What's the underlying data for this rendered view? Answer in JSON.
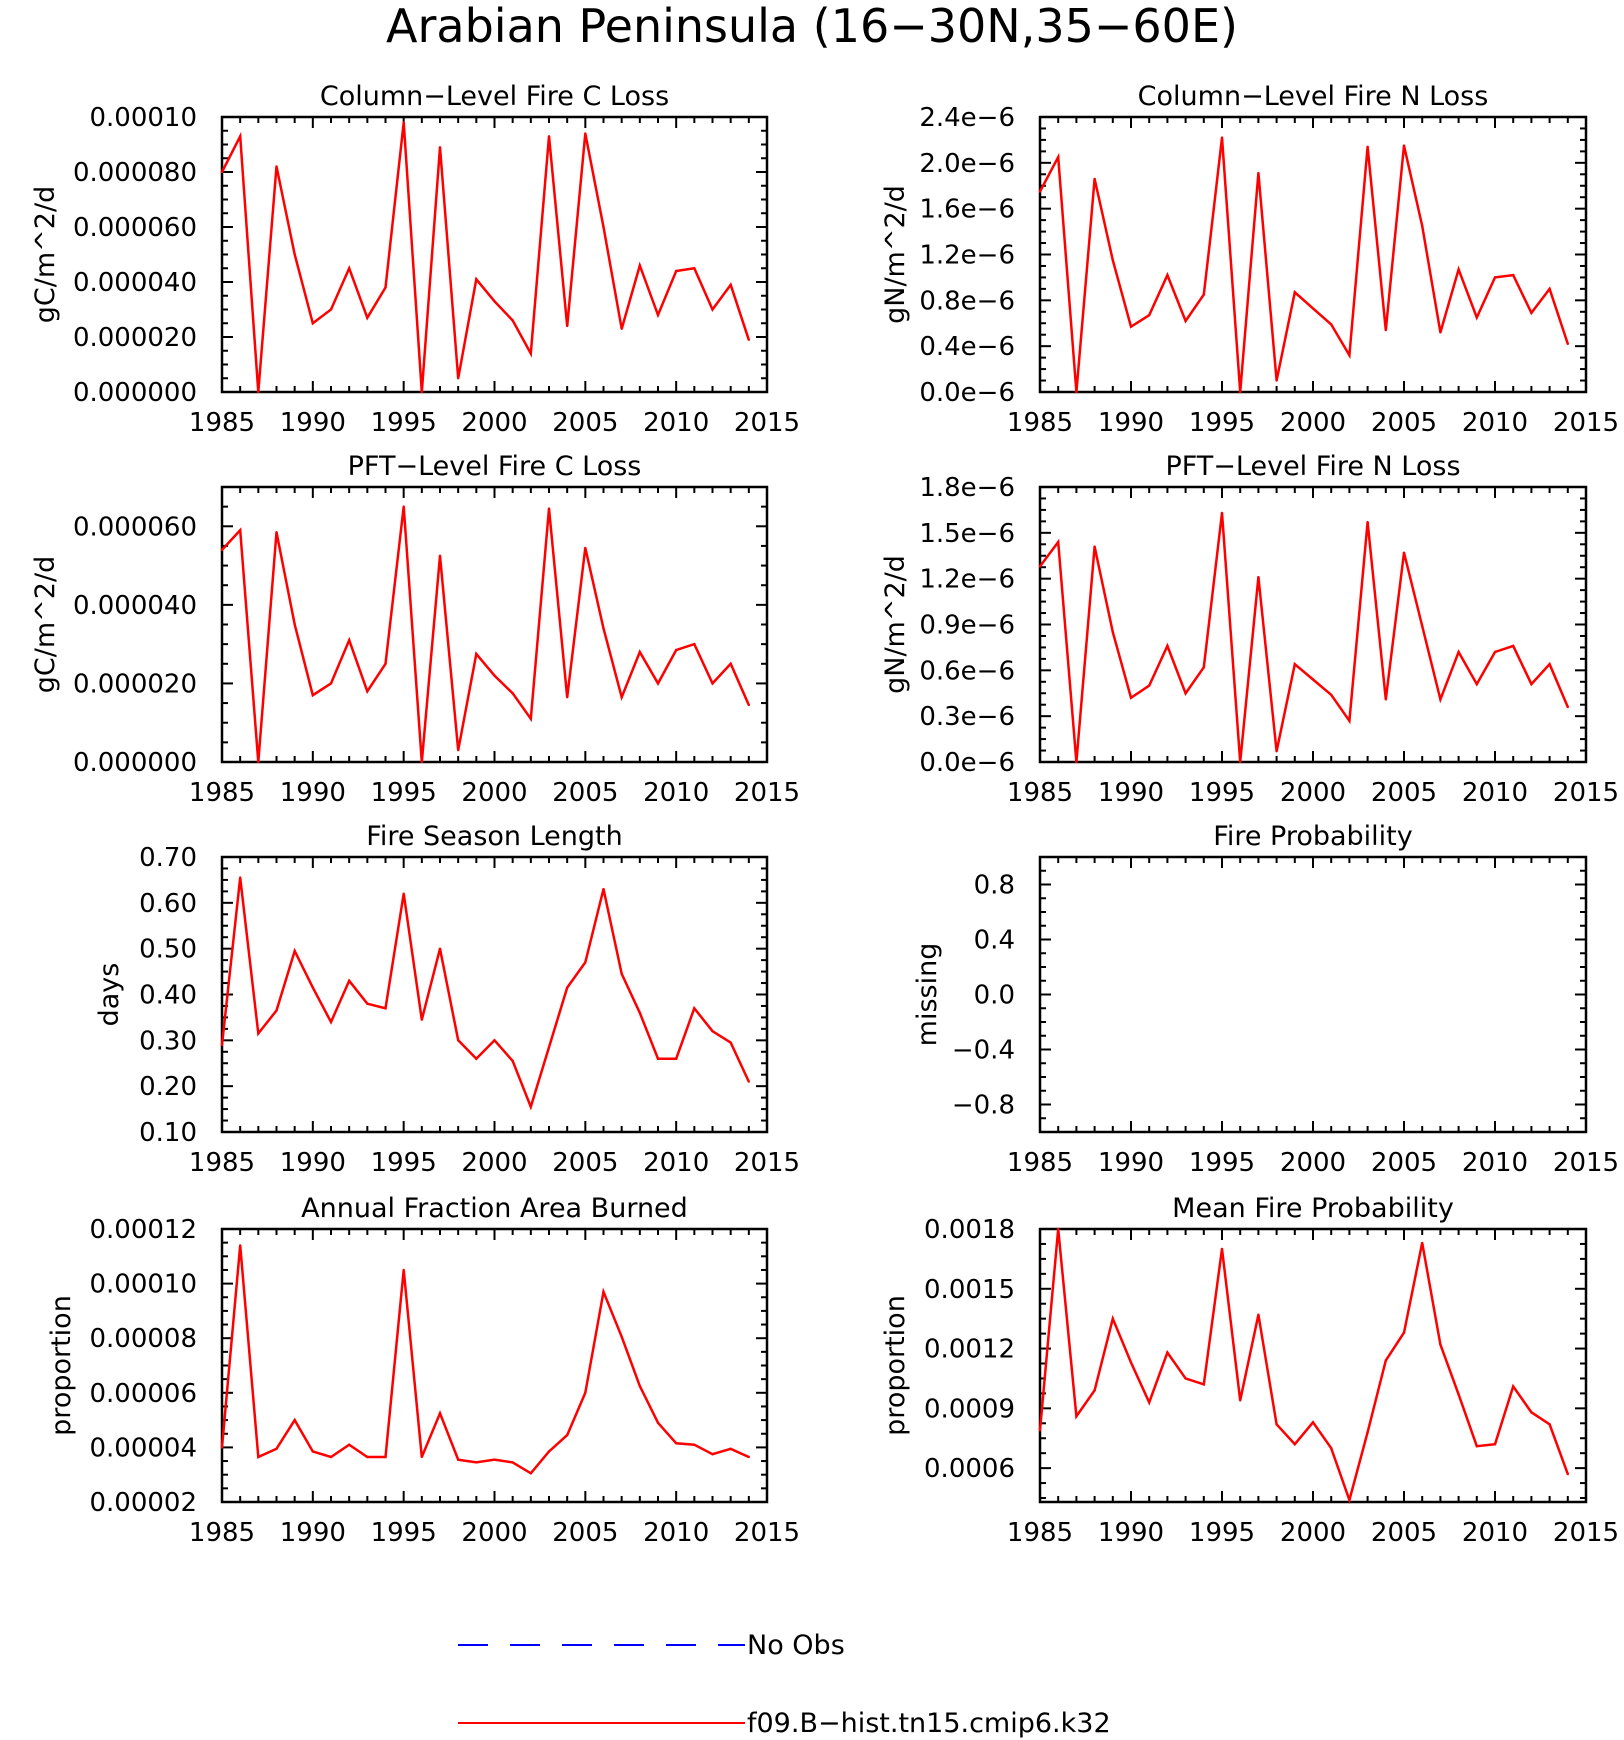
{
  "figure": {
    "title": "Arabian Peninsula (16−30N,35−60E)",
    "line_color": "#ff0000",
    "obs_color": "#0000ff",
    "legend": [
      {
        "label": "No Obs",
        "style": "dashed",
        "color": "#0000ff"
      },
      {
        "label": "f09.B−hist.tn15.cmip6.k32",
        "style": "solid",
        "color": "#ff0000"
      }
    ]
  },
  "chart_data": [
    {
      "type": "line",
      "title": "Column−Level Fire C Loss",
      "ylabel": "gC/m^2/d",
      "xlim": [
        1985,
        2015
      ],
      "xticks": [
        1985,
        1990,
        1995,
        2000,
        2005,
        2010,
        2015
      ],
      "xticklabels": [
        "1985",
        "1990",
        "1995",
        "2000",
        "2005",
        "2010",
        "2015"
      ],
      "ylim": [
        0,
        0.0001
      ],
      "yticks": [
        0,
        2e-05,
        4e-05,
        6e-05,
        8e-05,
        0.0001
      ],
      "yticklabels": [
        "0.000000",
        "0.000020",
        "0.000040",
        "0.000060",
        "0.000080",
        "0.00010"
      ],
      "x": [
        1985,
        1986,
        1987,
        1988,
        1989,
        1990,
        1991,
        1992,
        1993,
        1994,
        1995,
        1996,
        1997,
        1998,
        1999,
        2000,
        2001,
        2002,
        2003,
        2004,
        2005,
        2006,
        2007,
        2008,
        2009,
        2010,
        2011,
        2012,
        2013,
        2014
      ],
      "series": [
        {
          "values": [
            8e-05,
            9.3e-05,
            0.0,
            8.2e-05,
            5e-05,
            2.5e-05,
            3e-05,
            4.5e-05,
            2.7e-05,
            3.8e-05,
            9.8e-05,
            0.0,
            8.9e-05,
            5e-06,
            4.1e-05,
            3.3e-05,
            2.6e-05,
            1.4e-05,
            9.3e-05,
            2.4e-05,
            9.4e-05,
            6e-05,
            2.3e-05,
            4.6e-05,
            2.8e-05,
            4.4e-05,
            4.5e-05,
            3e-05,
            3.9e-05,
            1.9e-05
          ]
        }
      ]
    },
    {
      "type": "line",
      "title": "Column−Level Fire N Loss",
      "ylabel": "gN/m^2/d",
      "xlim": [
        1985,
        2015
      ],
      "xticks": [
        1985,
        1990,
        1995,
        2000,
        2005,
        2010,
        2015
      ],
      "xticklabels": [
        "1985",
        "1990",
        "1995",
        "2000",
        "2005",
        "2010",
        "2015"
      ],
      "ylim": [
        0,
        2.4e-06
      ],
      "yticks": [
        0,
        4e-07,
        8e-07,
        1.2e-06,
        1.6e-06,
        2e-06,
        2.4e-06
      ],
      "yticklabels": [
        "0.0e−6",
        "0.4e−6",
        "0.8e−6",
        "1.2e−6",
        "1.6e−6",
        "2.0e−6",
        "2.4e−6"
      ],
      "x": [
        1985,
        1986,
        1987,
        1988,
        1989,
        1990,
        1991,
        1992,
        1993,
        1994,
        1995,
        1996,
        1997,
        1998,
        1999,
        2000,
        2001,
        2002,
        2003,
        2004,
        2005,
        2006,
        2007,
        2008,
        2009,
        2010,
        2011,
        2012,
        2013,
        2014
      ],
      "series": [
        {
          "values": [
            1.75e-06,
            2.05e-06,
            0.0,
            1.86e-06,
            1.15e-06,
            5.7e-07,
            6.7e-07,
            1.02e-06,
            6.2e-07,
            8.5e-07,
            2.22e-06,
            0.0,
            1.91e-06,
            1e-07,
            8.7e-07,
            7.3e-07,
            5.9e-07,
            3.2e-07,
            2.14e-06,
            5.4e-07,
            2.15e-06,
            1.45e-06,
            5.2e-07,
            1.07e-06,
            6.5e-07,
            1e-06,
            1.02e-06,
            6.9e-07,
            9e-07,
            4.2e-07
          ]
        }
      ]
    },
    {
      "type": "line",
      "title": "PFT−Level Fire C Loss",
      "ylabel": "gC/m^2/d",
      "xlim": [
        1985,
        2015
      ],
      "xticks": [
        1985,
        1990,
        1995,
        2000,
        2005,
        2010,
        2015
      ],
      "xticklabels": [
        "1985",
        "1990",
        "1995",
        "2000",
        "2005",
        "2010",
        "2015"
      ],
      "ylim": [
        0,
        7e-05
      ],
      "yticks": [
        0,
        2e-05,
        4e-05,
        6e-05
      ],
      "yticklabels": [
        "0.000000",
        "0.000020",
        "0.000040",
        "0.000060"
      ],
      "x": [
        1985,
        1986,
        1987,
        1988,
        1989,
        1990,
        1991,
        1992,
        1993,
        1994,
        1995,
        1996,
        1997,
        1998,
        1999,
        2000,
        2001,
        2002,
        2003,
        2004,
        2005,
        2006,
        2007,
        2008,
        2009,
        2010,
        2011,
        2012,
        2013,
        2014
      ],
      "series": [
        {
          "values": [
            5.4e-05,
            5.9e-05,
            0.0,
            5.85e-05,
            3.5e-05,
            1.7e-05,
            2e-05,
            3.1e-05,
            1.8e-05,
            2.5e-05,
            6.5e-05,
            0.0,
            5.25e-05,
            3e-06,
            2.75e-05,
            2.2e-05,
            1.75e-05,
            1.1e-05,
            6.45e-05,
            1.65e-05,
            5.45e-05,
            3.4e-05,
            1.65e-05,
            2.8e-05,
            2e-05,
            2.85e-05,
            3e-05,
            2e-05,
            2.5e-05,
            1.45e-05
          ]
        }
      ]
    },
    {
      "type": "line",
      "title": "PFT−Level Fire N Loss",
      "ylabel": "gN/m^2/d",
      "xlim": [
        1985,
        2015
      ],
      "xticks": [
        1985,
        1990,
        1995,
        2000,
        2005,
        2010,
        2015
      ],
      "xticklabels": [
        "1985",
        "1990",
        "1995",
        "2000",
        "2005",
        "2010",
        "2015"
      ],
      "ylim": [
        0,
        1.8e-06
      ],
      "yticks": [
        0,
        3e-07,
        6e-07,
        9e-07,
        1.2e-06,
        1.5e-06,
        1.8e-06
      ],
      "yticklabels": [
        "0.0e−6",
        "0.3e−6",
        "0.6e−6",
        "0.9e−6",
        "1.2e−6",
        "1.5e−6",
        "1.8e−6"
      ],
      "x": [
        1985,
        1986,
        1987,
        1988,
        1989,
        1990,
        1991,
        1992,
        1993,
        1994,
        1995,
        1996,
        1997,
        1998,
        1999,
        2000,
        2001,
        2002,
        2003,
        2004,
        2005,
        2006,
        2007,
        2008,
        2009,
        2010,
        2011,
        2012,
        2013,
        2014
      ],
      "series": [
        {
          "values": [
            1.28e-06,
            1.44e-06,
            0.0,
            1.41e-06,
            8.5e-07,
            4.2e-07,
            5e-07,
            7.6e-07,
            4.5e-07,
            6.2e-07,
            1.63e-06,
            0.0,
            1.21e-06,
            7e-08,
            6.4e-07,
            5.4e-07,
            4.4e-07,
            2.7e-07,
            1.57e-06,
            4.1e-07,
            1.37e-06,
            8.9e-07,
            4.1e-07,
            7.2e-07,
            5.1e-07,
            7.2e-07,
            7.6e-07,
            5.1e-07,
            6.4e-07,
            3.6e-07
          ]
        }
      ]
    },
    {
      "type": "line",
      "title": "Fire Season Length",
      "ylabel": "days",
      "xlim": [
        1985,
        2015
      ],
      "xticks": [
        1985,
        1990,
        1995,
        2000,
        2005,
        2010,
        2015
      ],
      "xticklabels": [
        "1985",
        "1990",
        "1995",
        "2000",
        "2005",
        "2010",
        "2015"
      ],
      "ylim": [
        0.1,
        0.7
      ],
      "yticks": [
        0.1,
        0.2,
        0.3,
        0.4,
        0.5,
        0.6,
        0.7
      ],
      "yticklabels": [
        "0.10",
        "0.20",
        "0.30",
        "0.40",
        "0.50",
        "0.60",
        "0.70"
      ],
      "x": [
        1985,
        1986,
        1987,
        1988,
        1989,
        1990,
        1991,
        1992,
        1993,
        1994,
        1995,
        1996,
        1997,
        1998,
        1999,
        2000,
        2001,
        2002,
        2003,
        2004,
        2005,
        2006,
        2007,
        2008,
        2009,
        2010,
        2011,
        2012,
        2013,
        2014
      ],
      "series": [
        {
          "values": [
            0.29,
            0.655,
            0.315,
            0.365,
            0.495,
            0.415,
            0.34,
            0.43,
            0.38,
            0.37,
            0.62,
            0.345,
            0.5,
            0.3,
            0.26,
            0.3,
            0.255,
            0.155,
            0.285,
            0.415,
            0.47,
            0.63,
            0.445,
            0.36,
            0.26,
            0.26,
            0.37,
            0.32,
            0.295,
            0.21
          ]
        }
      ]
    },
    {
      "type": "line",
      "title": "Fire Probability",
      "ylabel": "missing",
      "xlim": [
        1985,
        2015
      ],
      "xticks": [
        1985,
        1990,
        1995,
        2000,
        2005,
        2010,
        2015
      ],
      "xticklabels": [
        "1985",
        "1990",
        "1995",
        "2000",
        "2005",
        "2010",
        "2015"
      ],
      "ylim": [
        -1.0,
        1.0
      ],
      "yticks": [
        -0.8,
        -0.4,
        0.0,
        0.4,
        0.8
      ],
      "yticklabels": [
        "−0.8",
        "−0.4",
        "0.0",
        "0.4",
        "0.8"
      ],
      "x": [],
      "series": []
    },
    {
      "type": "line",
      "title": "Annual Fraction Area Burned",
      "ylabel": "proportion",
      "xlim": [
        1985,
        2015
      ],
      "xticks": [
        1985,
        1990,
        1995,
        2000,
        2005,
        2010,
        2015
      ],
      "xticklabels": [
        "1985",
        "1990",
        "1995",
        "2000",
        "2005",
        "2010",
        "2015"
      ],
      "ylim": [
        2e-05,
        0.00012
      ],
      "yticks": [
        2e-05,
        4e-05,
        6e-05,
        8e-05,
        0.0001,
        0.00012
      ],
      "yticklabels": [
        "0.00002",
        "0.00004",
        "0.00006",
        "0.00008",
        "0.00010",
        "0.00012"
      ],
      "x": [
        1985,
        1986,
        1987,
        1988,
        1989,
        1990,
        1991,
        1992,
        1993,
        1994,
        1995,
        1996,
        1997,
        1998,
        1999,
        2000,
        2001,
        2002,
        2003,
        2004,
        2005,
        2006,
        2007,
        2008,
        2009,
        2010,
        2011,
        2012,
        2013,
        2014
      ],
      "series": [
        {
          "values": [
            4e-05,
            0.000114,
            3.65e-05,
            3.95e-05,
            5e-05,
            3.85e-05,
            3.65e-05,
            4.1e-05,
            3.65e-05,
            3.65e-05,
            0.000105,
            3.65e-05,
            5.25e-05,
            3.55e-05,
            3.45e-05,
            3.55e-05,
            3.45e-05,
            3.05e-05,
            3.85e-05,
            4.45e-05,
            6e-05,
            9.7e-05,
            8.05e-05,
            6.25e-05,
            4.9e-05,
            4.15e-05,
            4.1e-05,
            3.75e-05,
            3.95e-05,
            3.65e-05
          ]
        }
      ]
    },
    {
      "type": "line",
      "title": "Mean Fire Probability",
      "ylabel": "proportion",
      "xlim": [
        1985,
        2015
      ],
      "xticks": [
        1985,
        1990,
        1995,
        2000,
        2005,
        2010,
        2015
      ],
      "xticklabels": [
        "1985",
        "1990",
        "1995",
        "2000",
        "2005",
        "2010",
        "2015"
      ],
      "ylim": [
        0.00043,
        0.0018
      ],
      "yticks": [
        0.0006,
        0.0009,
        0.0012,
        0.0015,
        0.0018
      ],
      "yticklabels": [
        "0.0006",
        "0.0009",
        "0.0012",
        "0.0015",
        "0.0018"
      ],
      "x": [
        1985,
        1986,
        1987,
        1988,
        1989,
        1990,
        1991,
        1992,
        1993,
        1994,
        1995,
        1996,
        1997,
        1998,
        1999,
        2000,
        2001,
        2002,
        2003,
        2004,
        2005,
        2006,
        2007,
        2008,
        2009,
        2010,
        2011,
        2012,
        2013,
        2014
      ],
      "series": [
        {
          "values": [
            0.00079,
            0.0018,
            0.00086,
            0.00099,
            0.00135,
            0.00113,
            0.00093,
            0.00118,
            0.00105,
            0.00102,
            0.0017,
            0.00094,
            0.00137,
            0.00082,
            0.00072,
            0.00083,
            0.0007,
            0.00044,
            0.00078,
            0.00114,
            0.00128,
            0.00173,
            0.00122,
            0.00097,
            0.00071,
            0.00072,
            0.00101,
            0.00088,
            0.00082,
            0.00057
          ]
        }
      ]
    }
  ]
}
